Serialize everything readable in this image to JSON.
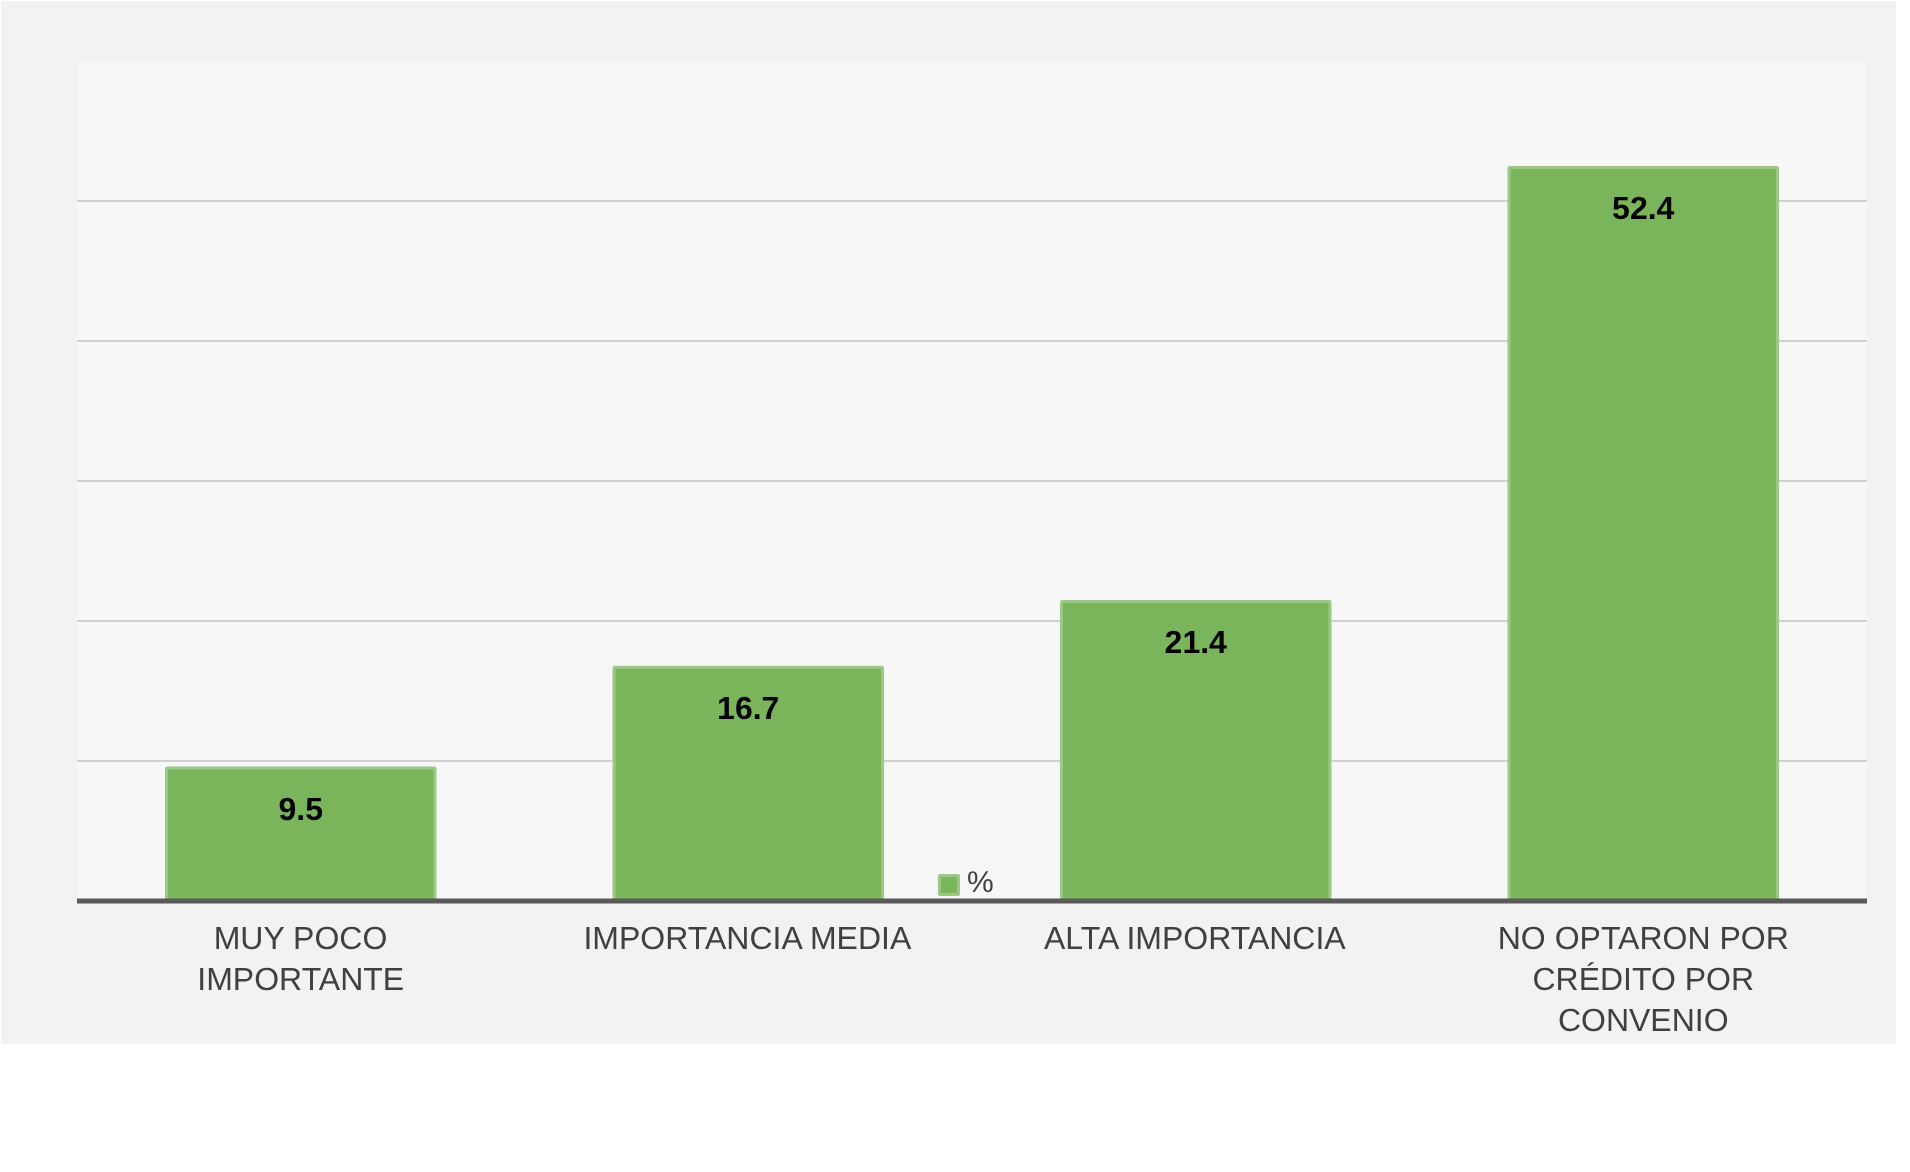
{
  "chart_data": {
    "type": "bar",
    "categories": [
      "MUY POCO IMPORTANTE",
      "IMPORTANCIA MEDIA",
      "ALTA IMPORTANCIA",
      "NO OPTARON POR CRÉDITO POR CONVENIO"
    ],
    "series": [
      {
        "name": "%",
        "color": "#7ab55c",
        "values": [
          9.5,
          16.7,
          21.4,
          52.4
        ]
      }
    ],
    "ylim": [
      0,
      60
    ],
    "yticks": [
      {
        "value": 0,
        "label": null
      },
      {
        "value": 10,
        "label": null
      },
      {
        "value": 20,
        "label": null
      },
      {
        "value": 30,
        "label": null
      },
      {
        "value": 40,
        "label": null
      },
      {
        "value": 50,
        "label": null
      },
      {
        "value": 60,
        "label": null
      }
    ],
    "tick_labels": "x",
    "grid": "y",
    "legend": "bottom",
    "data_labels": true
  }
}
